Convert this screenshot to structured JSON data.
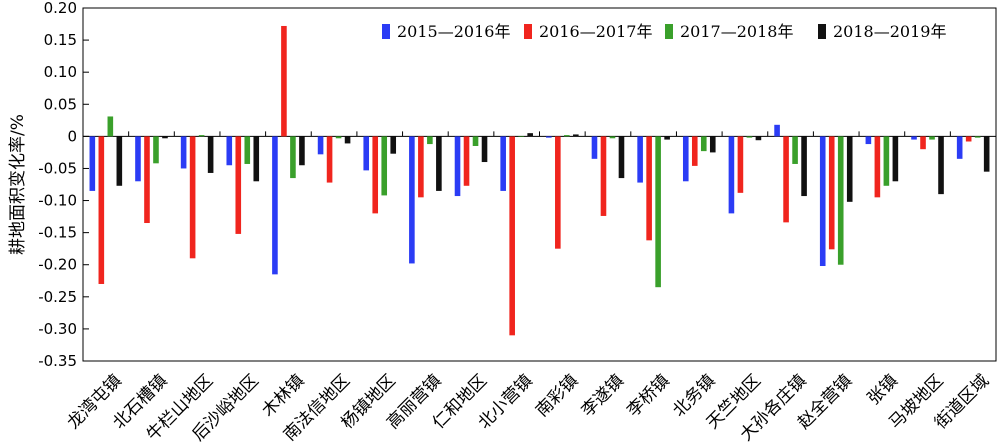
{
  "chart_data": {
    "type": "bar",
    "ylabel": "耕地面积变化率/%",
    "xlabel": "",
    "title": "",
    "ylim": [
      -0.35,
      0.2
    ],
    "yticks": [
      "0.20",
      "0.15",
      "0.10",
      "0.05",
      "0",
      "-0.05",
      "-0.10",
      "-0.15",
      "-0.20",
      "-0.25",
      "-0.30",
      "-0.35"
    ],
    "ytick_values": [
      0.2,
      0.15,
      0.1,
      0.05,
      0,
      -0.05,
      -0.1,
      -0.15,
      -0.2,
      -0.25,
      -0.3,
      -0.35
    ],
    "legend_position": "top-right",
    "grid": false,
    "categories": [
      "龙湾屯镇",
      "北石槽镇",
      "牛栏山地区",
      "后沙峪地区",
      "木林镇",
      "南法信地区",
      "杨镇地区",
      "高丽营镇",
      "仁和地区",
      "北小营镇",
      "南彩镇",
      "李遂镇",
      "李桥镇",
      "北务镇",
      "天竺地区",
      "大孙各庄镇",
      "赵全营镇",
      "张镇",
      "马坡地区",
      "街道区域"
    ],
    "series": [
      {
        "name": "2015—2016年",
        "color": "#2b3cf5",
        "values": [
          -0.085,
          -0.07,
          -0.05,
          -0.045,
          -0.215,
          -0.028,
          -0.053,
          -0.198,
          -0.093,
          -0.085,
          -0.002,
          -0.035,
          -0.072,
          -0.07,
          -0.12,
          0.018,
          -0.202,
          -0.012,
          -0.005,
          -0.035
        ]
      },
      {
        "name": "2016—2017年",
        "color": "#f0251e",
        "values": [
          -0.23,
          -0.135,
          -0.19,
          -0.152,
          0.172,
          -0.072,
          -0.12,
          -0.095,
          -0.077,
          -0.31,
          -0.175,
          -0.124,
          -0.162,
          -0.046,
          -0.088,
          -0.134,
          -0.176,
          -0.095,
          -0.02,
          -0.008
        ]
      },
      {
        "name": "2017—2018年",
        "color": "#3aa02b",
        "values": [
          0.031,
          -0.042,
          0.002,
          -0.043,
          -0.065,
          -0.003,
          -0.092,
          -0.012,
          -0.015,
          -0.001,
          0.002,
          -0.003,
          -0.235,
          -0.023,
          -0.002,
          -0.043,
          -0.2,
          -0.077,
          -0.005,
          -0.002
        ]
      },
      {
        "name": "2018—2019年",
        "color": "#111111",
        "values": [
          -0.077,
          -0.003,
          -0.057,
          -0.07,
          -0.045,
          -0.011,
          -0.027,
          -0.085,
          -0.04,
          0.005,
          0.003,
          -0.065,
          -0.005,
          -0.025,
          -0.006,
          -0.093,
          -0.102,
          -0.07,
          -0.09,
          -0.055
        ]
      }
    ]
  }
}
